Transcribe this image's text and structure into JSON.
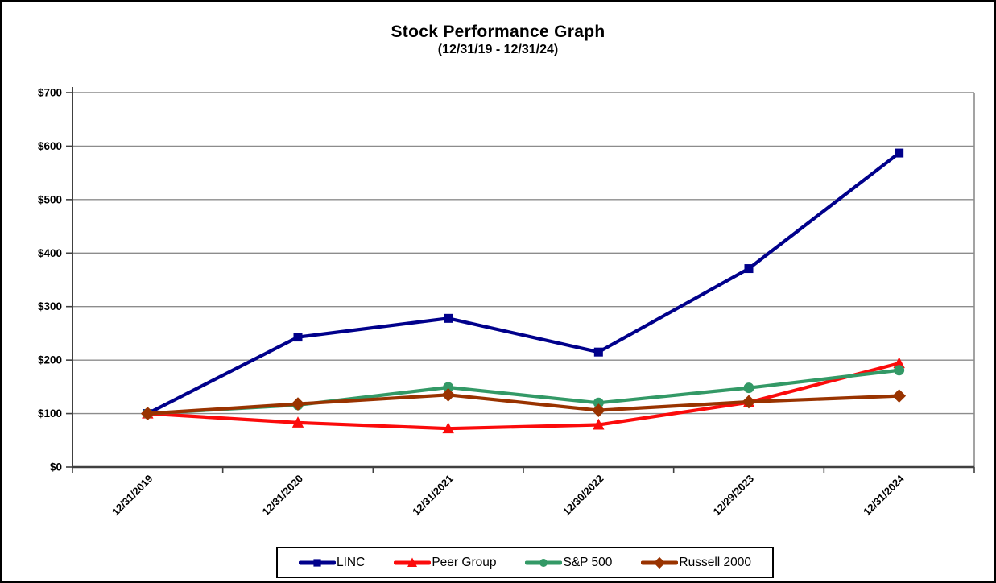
{
  "chart_data": {
    "type": "line",
    "title": "Stock Performance Graph",
    "subtitle": "(12/31/19 - 12/31/24)",
    "categories": [
      "12/31/2019",
      "12/31/2020",
      "12/31/2021",
      "12/30/2022",
      "12/29/2023",
      "12/31/2024"
    ],
    "series": [
      {
        "name": "LINC",
        "color": "#00008B",
        "marker": "square",
        "values": [
          100,
          243,
          278,
          215,
          371,
          587
        ]
      },
      {
        "name": "Peer Group",
        "color": "#FB0B0B",
        "marker": "triangle",
        "values": [
          100,
          83,
          72,
          79,
          121,
          194
        ]
      },
      {
        "name": "S&P 500",
        "color": "#339966",
        "marker": "circle",
        "values": [
          100,
          116,
          149,
          120,
          148,
          181
        ]
      },
      {
        "name": "Russell 2000",
        "color": "#993300",
        "marker": "diamond",
        "values": [
          100,
          118,
          135,
          106,
          122,
          133
        ]
      }
    ],
    "ylim": [
      0,
      700
    ],
    "y_tick_step": 100,
    "y_ticks": [
      "$0",
      "$100",
      "$200",
      "$300",
      "$400",
      "$500",
      "$600",
      "$700"
    ],
    "xlabel": "",
    "ylabel": "",
    "grid": "horizontal",
    "legend_position": "bottom",
    "colors": {
      "background": "#FFFFFF",
      "gridline": "#8C8C8C",
      "axis": "#404040",
      "text": "#000000",
      "border": "#000000"
    }
  }
}
